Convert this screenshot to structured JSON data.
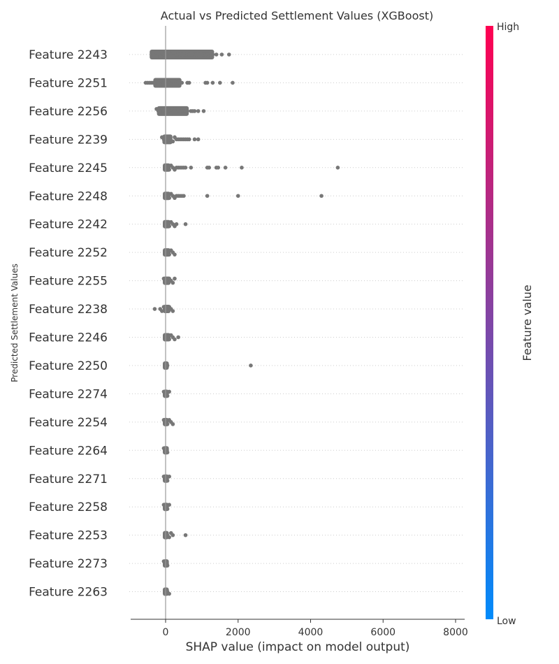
{
  "chart_data": {
    "type": "scatter",
    "subtype": "shap-beeswarm-summary",
    "title": "Actual vs Predicted Settlement Values (XGBoost)",
    "xlabel": "SHAP value (impact on model output)",
    "ylabel": "Predicted Settlement Values",
    "xlim": [
      -950,
      8250
    ],
    "xticks": [
      0,
      2000,
      4000,
      6000,
      8000
    ],
    "xtick_labels": [
      "0",
      "2000",
      "4000",
      "6000",
      "8000"
    ],
    "grid": false,
    "zero_line": true,
    "point_color": "#777777",
    "colorbar": {
      "label": "Feature value",
      "high_label": "High",
      "low_label": "Low",
      "high_color": "#ff0051",
      "low_color": "#008bfb"
    },
    "features": [
      {
        "name": "Feature 2243",
        "points": [
          -250,
          -200,
          -150,
          -100,
          -50,
          50,
          100,
          150,
          200,
          250,
          300,
          350,
          400,
          450,
          500,
          550,
          600,
          650,
          700,
          750,
          800,
          850,
          900,
          950,
          1000,
          1050,
          1100,
          1150,
          1200,
          1250,
          1300,
          1400,
          1550,
          1750
        ],
        "dense_range": [
          -400,
          1300
        ]
      },
      {
        "name": "Feature 2251",
        "points": [
          -550,
          -500,
          -450,
          -400,
          -350,
          -300,
          -250,
          -200,
          -150,
          -100,
          -50,
          0,
          50,
          100,
          150,
          200,
          250,
          300,
          350,
          400,
          450,
          600,
          650,
          1100,
          1150,
          1300,
          1500,
          1850
        ],
        "dense_range": [
          -300,
          400
        ]
      },
      {
        "name": "Feature 2256",
        "points": [
          -250,
          -200,
          -150,
          -100,
          -50,
          0,
          50,
          100,
          150,
          200,
          250,
          300,
          350,
          400,
          450,
          500,
          550,
          600,
          700,
          750,
          800,
          900,
          1050
        ],
        "dense_range": [
          -200,
          600
        ]
      },
      {
        "name": "Feature 2239",
        "points": [
          -100,
          -50,
          0,
          50,
          100,
          200,
          250,
          300,
          350,
          400,
          450,
          500,
          550,
          600,
          650,
          800,
          900
        ],
        "dense_range": [
          -50,
          150
        ]
      },
      {
        "name": "Feature 2245",
        "points": [
          0,
          50,
          100,
          150,
          200,
          250,
          300,
          350,
          400,
          450,
          500,
          550,
          700,
          1150,
          1200,
          1400,
          1450,
          1650,
          2100,
          4750
        ],
        "dense_range": [
          0,
          100
        ]
      },
      {
        "name": "Feature 2248",
        "points": [
          0,
          50,
          100,
          150,
          200,
          250,
          300,
          350,
          400,
          450,
          500,
          1150,
          2000,
          4300
        ],
        "dense_range": [
          0,
          100
        ]
      },
      {
        "name": "Feature 2242",
        "points": [
          0,
          50,
          100,
          150,
          200,
          250,
          300,
          550
        ],
        "dense_range": [
          0,
          100
        ]
      },
      {
        "name": "Feature 2252",
        "points": [
          0,
          50,
          100,
          150,
          200,
          250
        ],
        "dense_range": [
          0,
          100
        ]
      },
      {
        "name": "Feature 2255",
        "points": [
          -50,
          0,
          50,
          100,
          150,
          200,
          250
        ],
        "dense_range": [
          0,
          100
        ]
      },
      {
        "name": "Feature 2238",
        "points": [
          -300,
          -150,
          -100,
          -50,
          0,
          50,
          100,
          150,
          200
        ],
        "dense_range": [
          0,
          100
        ]
      },
      {
        "name": "Feature 2246",
        "points": [
          0,
          50,
          100,
          150,
          200,
          250,
          350
        ],
        "dense_range": [
          0,
          100
        ]
      },
      {
        "name": "Feature 2250",
        "points": [
          0,
          50,
          2350
        ],
        "dense_range": [
          0,
          50
        ]
      },
      {
        "name": "Feature 2274",
        "points": [
          -50,
          0,
          50,
          100
        ],
        "dense_range": [
          0,
          50
        ]
      },
      {
        "name": "Feature 2254",
        "points": [
          -50,
          0,
          50,
          100,
          150,
          200
        ],
        "dense_range": [
          0,
          50
        ]
      },
      {
        "name": "Feature 2264",
        "points": [
          -50,
          0,
          50
        ],
        "dense_range": [
          0,
          50
        ]
      },
      {
        "name": "Feature 2271",
        "points": [
          -50,
          0,
          50,
          100
        ],
        "dense_range": [
          0,
          50
        ]
      },
      {
        "name": "Feature 2258",
        "points": [
          -50,
          0,
          50,
          100
        ],
        "dense_range": [
          0,
          50
        ]
      },
      {
        "name": "Feature 2253",
        "points": [
          0,
          50,
          100,
          150,
          200,
          550
        ],
        "dense_range": [
          0,
          50
        ]
      },
      {
        "name": "Feature 2273",
        "points": [
          -50,
          0,
          50
        ],
        "dense_range": [
          0,
          50
        ]
      },
      {
        "name": "Feature 2263",
        "points": [
          0,
          50,
          100
        ],
        "dense_range": [
          0,
          50
        ]
      }
    ]
  }
}
